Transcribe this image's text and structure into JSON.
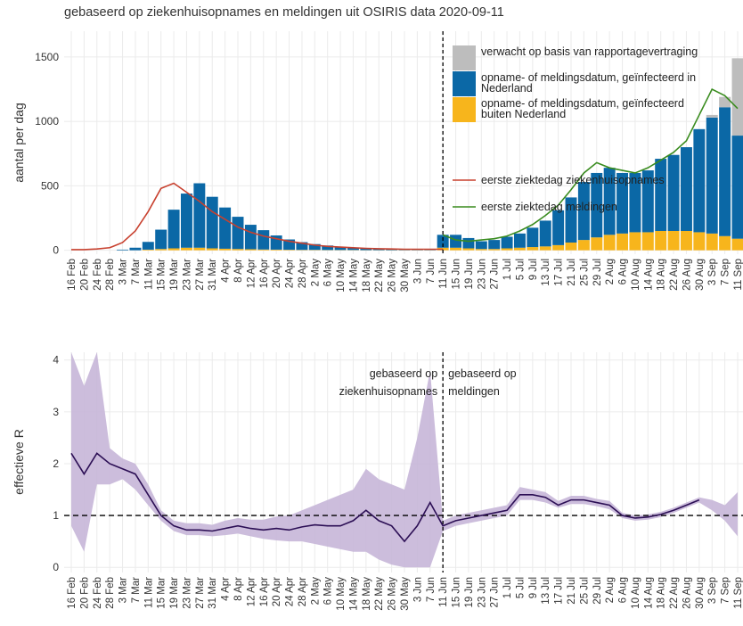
{
  "chart_data": [
    {
      "type": "bar",
      "title": "gebaseerd op ziekenhuisopnames en meldingen uit OSIRIS data 2020-09-11",
      "ylabel": "aantal per dag",
      "categories": [
        "16 Feb",
        "20 Feb",
        "24 Feb",
        "28 Feb",
        "3 Mar",
        "7 Mar",
        "11 Mar",
        "15 Mar",
        "19 Mar",
        "23 Mar",
        "27 Mar",
        "31 Mar",
        "4 Apr",
        "8 Apr",
        "12 Apr",
        "16 Apr",
        "20 Apr",
        "24 Apr",
        "28 Apr",
        "2 May",
        "6 May",
        "10 May",
        "14 May",
        "18 May",
        "22 May",
        "26 May",
        "30 May",
        "3 Jun",
        "7 Jun",
        "11 Jun",
        "15 Jun",
        "19 Jun",
        "23 Jun",
        "27 Jun",
        "1 Jul",
        "5 Jul",
        "9 Jul",
        "13 Jul",
        "17 Jul",
        "21 Jul",
        "25 Jul",
        "29 Jul",
        "2 Aug",
        "6 Aug",
        "10 Aug",
        "14 Aug",
        "18 Aug",
        "22 Aug",
        "26 Aug",
        "30 Aug",
        "3 Sep",
        "7 Sep",
        "11 Sep"
      ],
      "series": [
        {
          "name": "verwacht op basis van rapportagevertraging",
          "kind": "bar",
          "color": "#bdbdbd",
          "values": [
            0,
            0,
            0,
            0,
            0,
            0,
            0,
            0,
            0,
            0,
            0,
            0,
            0,
            0,
            0,
            0,
            0,
            0,
            0,
            0,
            0,
            0,
            0,
            0,
            0,
            0,
            0,
            0,
            0,
            0,
            0,
            0,
            0,
            0,
            0,
            0,
            0,
            0,
            0,
            0,
            0,
            0,
            0,
            0,
            0,
            0,
            0,
            0,
            0,
            0,
            20,
            80,
            600
          ]
        },
        {
          "name": "opname- of meldingsdatum, geïnfecteerd in Nederland",
          "kind": "bar",
          "color": "#0b68a6",
          "values": [
            0,
            0,
            0,
            0,
            5,
            20,
            60,
            150,
            300,
            420,
            500,
            400,
            320,
            250,
            190,
            150,
            110,
            80,
            60,
            45,
            35,
            25,
            20,
            15,
            10,
            8,
            5,
            5,
            5,
            100,
            100,
            80,
            60,
            70,
            90,
            110,
            150,
            200,
            270,
            350,
            450,
            500,
            520,
            470,
            460,
            480,
            560,
            590,
            650,
            800,
            900,
            1000,
            800
          ]
        },
        {
          "name": "opname- of meldingsdatum, geïnfecteerd buiten Nederland",
          "kind": "bar",
          "color": "#f7b51c",
          "values": [
            0,
            0,
            0,
            0,
            0,
            0,
            5,
            10,
            15,
            20,
            20,
            15,
            12,
            10,
            8,
            6,
            5,
            4,
            3,
            3,
            2,
            2,
            2,
            1,
            1,
            1,
            1,
            1,
            1,
            20,
            20,
            15,
            10,
            10,
            15,
            20,
            25,
            30,
            40,
            60,
            80,
            100,
            120,
            130,
            140,
            140,
            150,
            150,
            150,
            140,
            130,
            110,
            90
          ]
        },
        {
          "name": "eerste ziektedag ziekenhuisopnames",
          "kind": "line",
          "color": "#c8412f",
          "values": [
            5,
            5,
            10,
            20,
            60,
            150,
            300,
            480,
            520,
            450,
            380,
            300,
            240,
            180,
            140,
            110,
            90,
            70,
            55,
            40,
            30,
            25,
            20,
            15,
            12,
            10,
            8,
            8,
            8,
            8,
            null,
            null,
            null,
            null,
            null,
            null,
            null,
            null,
            null,
            null,
            null,
            null,
            null,
            null,
            null,
            null,
            null,
            null,
            null,
            null,
            null,
            null,
            null
          ]
        },
        {
          "name": "eerste ziektedag meldingen",
          "kind": "line",
          "color": "#3a8c1f",
          "values": [
            null,
            null,
            null,
            null,
            null,
            null,
            null,
            null,
            null,
            null,
            null,
            null,
            null,
            null,
            null,
            null,
            null,
            null,
            null,
            null,
            null,
            null,
            null,
            null,
            null,
            null,
            null,
            null,
            null,
            120,
            80,
            70,
            80,
            90,
            110,
            150,
            200,
            270,
            350,
            470,
            600,
            680,
            640,
            620,
            600,
            640,
            700,
            760,
            850,
            1050,
            1250,
            1200,
            1100
          ]
        }
      ],
      "ylim": [
        -30,
        1700
      ],
      "yticks": [
        0,
        500,
        1000,
        1500
      ],
      "grid": true,
      "vline": "11 Jun"
    },
    {
      "type": "line",
      "ylabel": "effectieve R",
      "categories": [
        "16 Feb",
        "20 Feb",
        "24 Feb",
        "28 Feb",
        "3 Mar",
        "7 Mar",
        "11 Mar",
        "15 Mar",
        "19 Mar",
        "23 Mar",
        "27 Mar",
        "31 Mar",
        "4 Apr",
        "8 Apr",
        "12 Apr",
        "16 Apr",
        "20 Apr",
        "24 Apr",
        "28 Apr",
        "2 May",
        "6 May",
        "10 May",
        "14 May",
        "18 May",
        "22 May",
        "26 May",
        "30 May",
        "3 Jun",
        "7 Jun",
        "11 Jun",
        "15 Jun",
        "19 Jun",
        "23 Jun",
        "27 Jun",
        "1 Jul",
        "5 Jul",
        "9 Jul",
        "13 Jul",
        "17 Jul",
        "21 Jul",
        "25 Jul",
        "29 Jul",
        "2 Aug",
        "6 Aug",
        "10 Aug",
        "14 Aug",
        "18 Aug",
        "22 Aug",
        "26 Aug",
        "30 Aug",
        "3 Sep",
        "7 Sep",
        "11 Sep"
      ],
      "line": {
        "color": "#2c0f55",
        "values": [
          2.2,
          1.8,
          2.2,
          2.0,
          1.9,
          1.8,
          1.4,
          1.0,
          0.8,
          0.72,
          0.72,
          0.7,
          0.75,
          0.8,
          0.75,
          0.72,
          0.75,
          0.72,
          0.78,
          0.82,
          0.8,
          0.8,
          0.9,
          1.1,
          0.9,
          0.8,
          0.5,
          0.8,
          1.25,
          0.8,
          0.9,
          0.95,
          1.0,
          1.05,
          1.1,
          1.4,
          1.4,
          1.35,
          1.2,
          1.3,
          1.3,
          1.25,
          1.2,
          1.0,
          0.95,
          0.97,
          1.02,
          1.1,
          1.2,
          1.3,
          null,
          null,
          null
        ]
      },
      "band": {
        "color": "#c6b6d8",
        "low": [
          0.8,
          0.3,
          1.6,
          1.6,
          1.7,
          1.5,
          1.2,
          0.9,
          0.7,
          0.62,
          0.62,
          0.6,
          0.62,
          0.65,
          0.6,
          0.55,
          0.52,
          0.5,
          0.5,
          0.45,
          0.4,
          0.35,
          0.3,
          0.3,
          0.15,
          0.05,
          0,
          0,
          0,
          0.7,
          0.8,
          0.85,
          0.9,
          0.95,
          1.0,
          1.3,
          1.3,
          1.25,
          1.15,
          1.22,
          1.22,
          1.18,
          1.12,
          0.95,
          0.9,
          0.92,
          0.97,
          1.05,
          1.15,
          1.25,
          1.1,
          0.9,
          0.6
        ],
        "high": [
          4.15,
          3.5,
          4.15,
          2.3,
          2.1,
          2.0,
          1.6,
          1.1,
          0.9,
          0.85,
          0.85,
          0.82,
          0.9,
          0.95,
          0.92,
          0.92,
          0.98,
          1.0,
          1.1,
          1.2,
          1.3,
          1.4,
          1.5,
          1.9,
          1.7,
          1.6,
          1.5,
          2.5,
          3.8,
          0.9,
          1.0,
          1.05,
          1.1,
          1.15,
          1.2,
          1.55,
          1.5,
          1.45,
          1.28,
          1.38,
          1.38,
          1.32,
          1.28,
          1.05,
          1.0,
          1.02,
          1.07,
          1.15,
          1.25,
          1.35,
          1.3,
          1.2,
          1.45
        ]
      },
      "ylim": [
        -0.1,
        4.15
      ],
      "yticks": [
        0,
        1,
        2,
        3,
        4
      ],
      "grid": true,
      "hline": 1,
      "vline": "11 Jun",
      "annotations": [
        "gebaseerd op ziekenhuisopnames",
        "gebaseerd op meldingen"
      ]
    }
  ]
}
